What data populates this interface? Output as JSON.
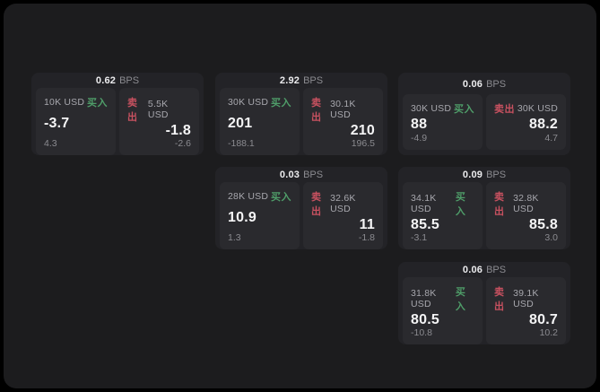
{
  "labels": {
    "bps_unit": "BPS",
    "buy": "买入",
    "sell": "卖出"
  },
  "colors": {
    "background": "#000000",
    "board": "#1c1c1e",
    "card": "#232327",
    "panel": "#2a2a2e",
    "buy_green": "#4f9d69",
    "sell_red": "#c85160",
    "value_white": "#f5f5f6",
    "muted_gray": "#8b8b90"
  },
  "cards": [
    {
      "bps_value": "0.62",
      "buy": {
        "amount": "10K USD",
        "value": "-3.7",
        "delta": "4.3"
      },
      "sell": {
        "amount": "5.5K USD",
        "value": "-1.8",
        "delta": "-2.6"
      }
    },
    {
      "bps_value": "2.92",
      "buy": {
        "amount": "30K USD",
        "value": "201",
        "delta": "-188.1"
      },
      "sell": {
        "amount": "30.1K USD",
        "value": "210",
        "delta": "196.5"
      }
    },
    {
      "bps_value": "0.06",
      "buy": {
        "amount": "30K USD",
        "value": "88",
        "delta": "-4.9"
      },
      "sell": {
        "amount": "30K USD",
        "value": "88.2",
        "delta": "4.7"
      }
    },
    {
      "bps_value": "0.03",
      "buy": {
        "amount": "28K USD",
        "value": "10.9",
        "delta": "1.3"
      },
      "sell": {
        "amount": "32.6K USD",
        "value": "11",
        "delta": "-1.8"
      }
    },
    {
      "bps_value": "0.09",
      "buy": {
        "amount": "34.1K USD",
        "value": "85.5",
        "delta": "-3.1"
      },
      "sell": {
        "amount": "32.8K USD",
        "value": "85.8",
        "delta": "3.0"
      }
    },
    {
      "bps_value": "0.06",
      "buy": {
        "amount": "31.8K USD",
        "value": "80.5",
        "delta": "-10.8"
      },
      "sell": {
        "amount": "39.1K USD",
        "value": "80.7",
        "delta": "10.2"
      }
    }
  ]
}
